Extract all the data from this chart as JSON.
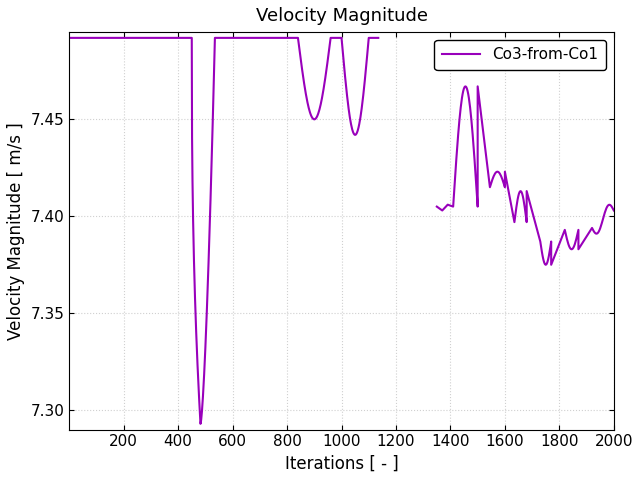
{
  "title": "Velocity Magnitude",
  "xlabel": "Iterations [ - ]",
  "ylabel": "Velocity Magnitude [ m/s ]",
  "legend_label": "Co3-from-Co1",
  "line_color": "#9900bb",
  "xlim": [
    0,
    2000
  ],
  "ylim": [
    7.29,
    7.495
  ],
  "xticks": [
    200,
    400,
    600,
    800,
    1000,
    1200,
    1400,
    1600,
    1800,
    2000
  ],
  "yticks": [
    7.3,
    7.35,
    7.4,
    7.45
  ],
  "figsize": [
    6.4,
    4.8
  ],
  "dpi": 100,
  "background_color": "#ffffff",
  "grid_color": "#d0d0d0"
}
